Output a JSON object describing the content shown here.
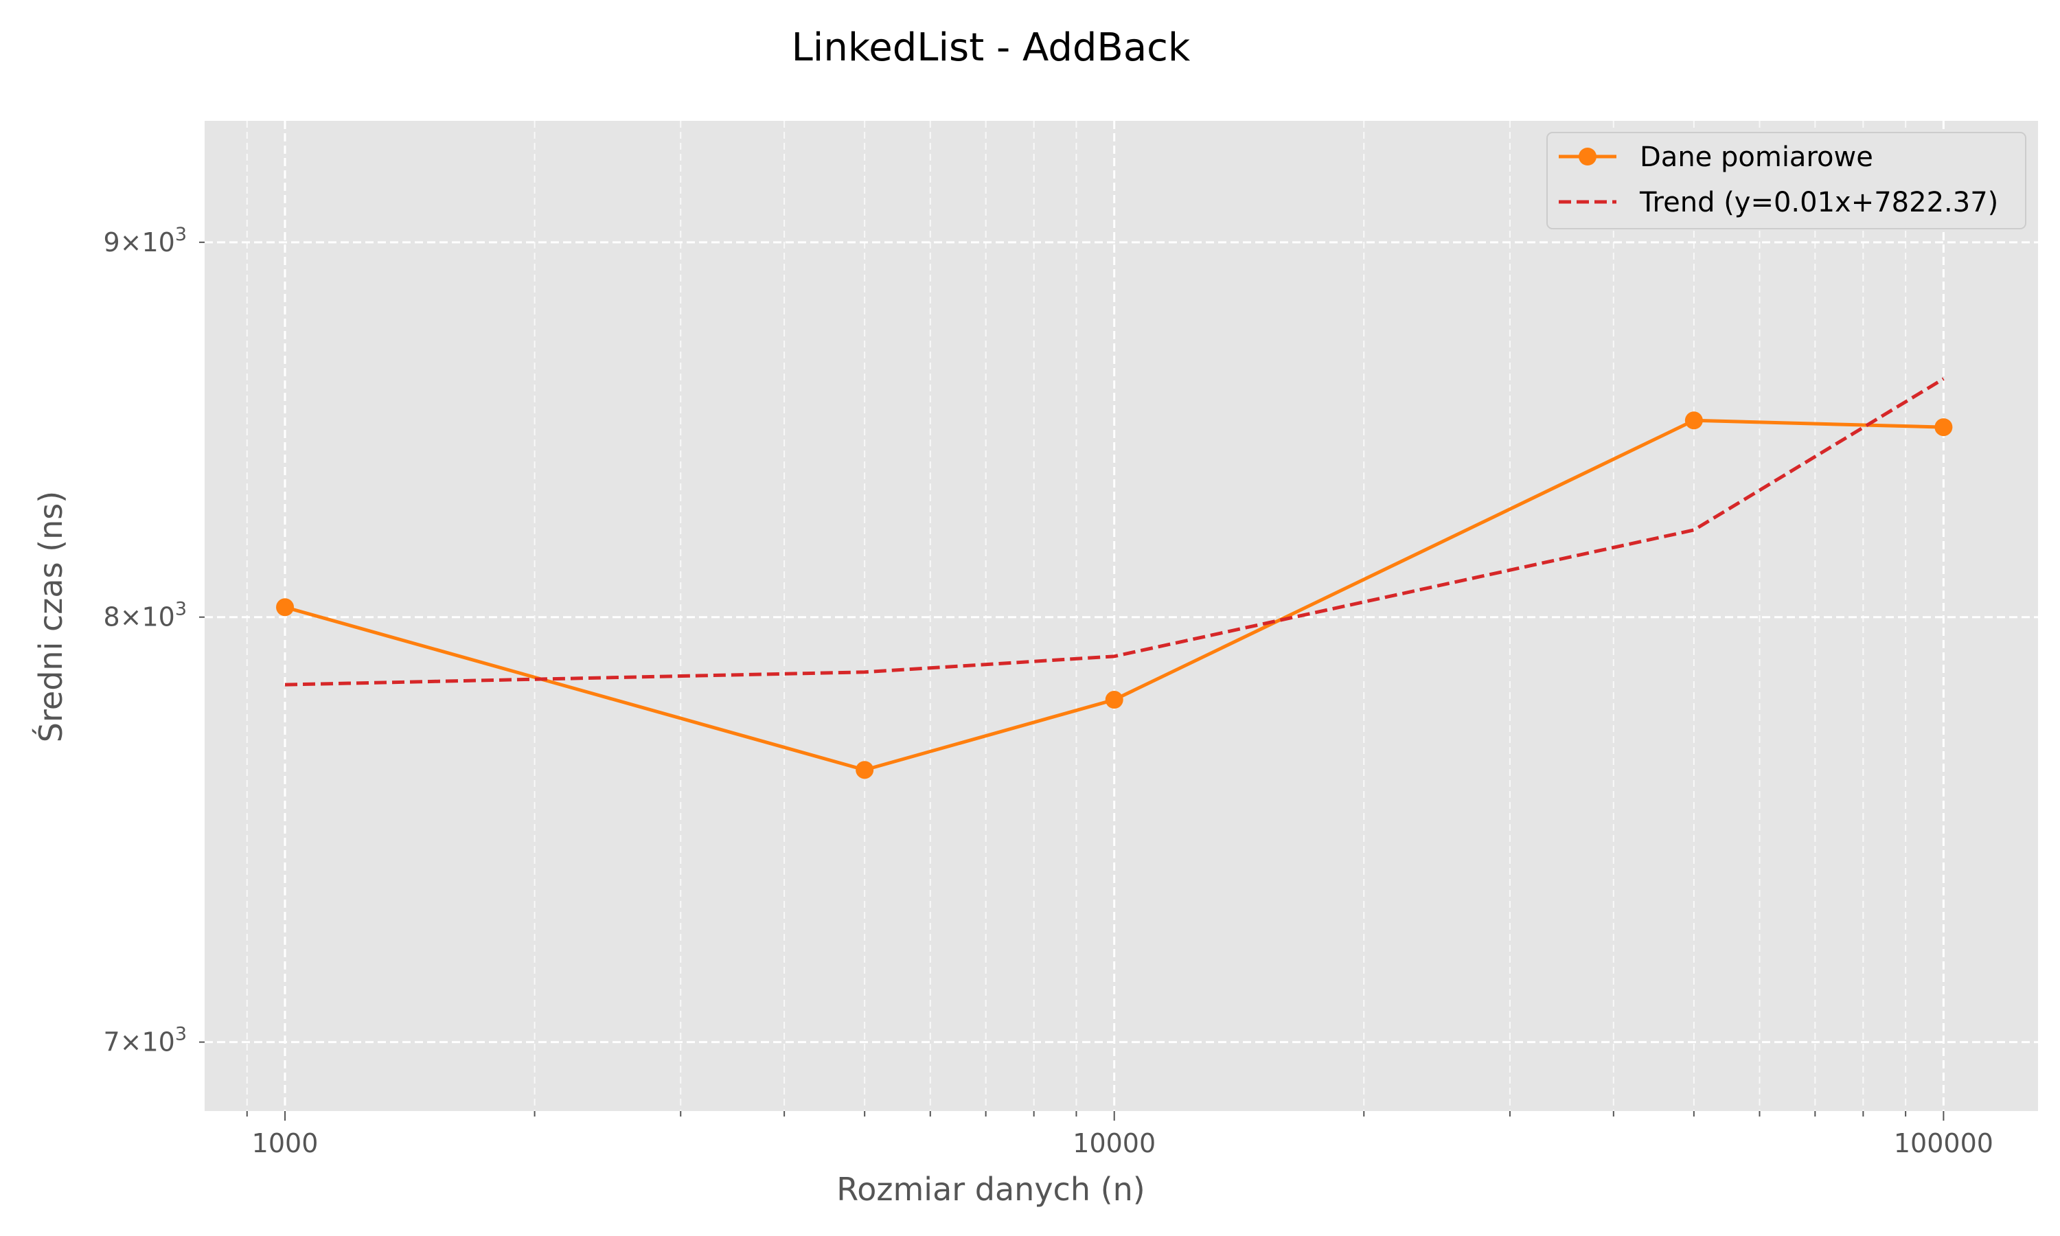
{
  "chart_data": {
    "type": "line",
    "title": "LinkedList - AddBack",
    "xlabel": "Rozmiar danych (n)",
    "ylabel": "Średni czas (ns)",
    "x_scale": "log",
    "y_scale": "log",
    "xlim": [
      800,
      130000
    ],
    "ylim": [
      6850,
      9350
    ],
    "x_ticks": [
      {
        "value": 1000,
        "label": "1000"
      },
      {
        "value": 10000,
        "label": "10000"
      },
      {
        "value": 100000,
        "label": "100000"
      }
    ],
    "y_ticks": [
      {
        "value": 7000,
        "mant": "7",
        "exp": "3"
      },
      {
        "value": 8000,
        "mant": "8",
        "exp": "3"
      },
      {
        "value": 9000,
        "mant": "9",
        "exp": "3"
      }
    ],
    "grid": true,
    "legend_position": "top-right",
    "series": [
      {
        "name": "Dane pomiarowe",
        "color": "#ff7f0e",
        "style": "solid",
        "marker": "circle",
        "x": [
          1000,
          5000,
          10000,
          50000,
          100000
        ],
        "y": [
          8025,
          7625,
          7795,
          8510,
          8492
        ]
      },
      {
        "name": "Trend (y=0.01x+7822.37)",
        "color": "#d62728",
        "style": "dashed",
        "marker": "none",
        "x": [
          1000,
          5000,
          10000,
          50000,
          100000
        ],
        "y": [
          7832,
          7863,
          7902,
          8222,
          8622
        ]
      }
    ],
    "colors": {
      "plot_background": "#e5e5e5",
      "grid": "#ffffff",
      "tick_text": "#555555"
    }
  }
}
